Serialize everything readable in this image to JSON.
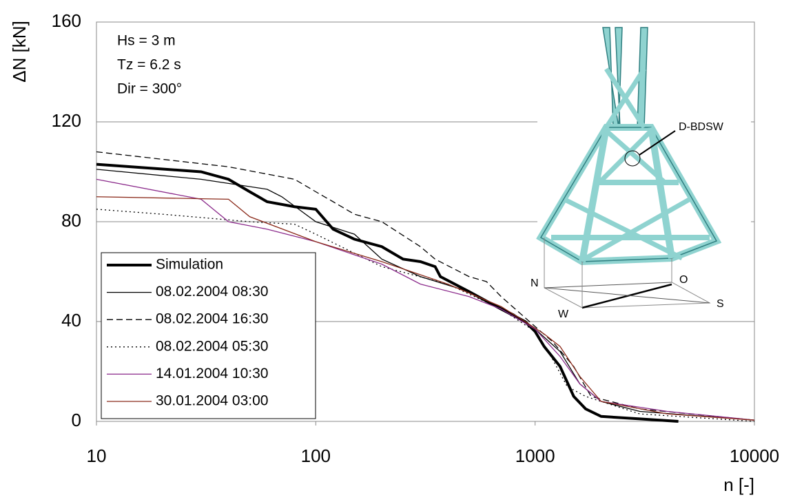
{
  "chart_data": {
    "type": "line",
    "x_label": "n [-]",
    "y_label": "ΔN [kN]",
    "xlim": [
      10,
      10000
    ],
    "xticks": [
      10,
      100,
      1000,
      10000
    ],
    "log_x": true,
    "ylim": [
      0,
      160
    ],
    "yticks": [
      0,
      40,
      80,
      120,
      160
    ],
    "grid": true,
    "legend": "lower left",
    "annotations": [
      "Hs = 3 m",
      "Tz = 6.2 s",
      "Dir = 300°"
    ],
    "inset_labels": [
      "D-BDSW",
      "N",
      "O",
      "W",
      "S"
    ],
    "series": [
      {
        "name": "Simulation",
        "color": "#000000",
        "width": 4,
        "dash": "none",
        "x": [
          10,
          30,
          40,
          50,
          60,
          80,
          100,
          120,
          150,
          200,
          250,
          300,
          350,
          370,
          500,
          700,
          900,
          1000,
          1100,
          1300,
          1500,
          1700,
          2000,
          3000,
          4500
        ],
        "values": [
          103,
          100,
          97,
          92,
          88,
          86,
          85,
          77,
          73,
          70,
          65,
          64,
          62,
          58,
          52,
          45,
          40,
          36,
          30,
          22,
          10,
          5,
          2,
          1,
          0
        ]
      },
      {
        "name": "08.02.2004 08:30",
        "color": "#000000",
        "width": 1.3,
        "dash": "none",
        "x": [
          10,
          30,
          60,
          70,
          100,
          150,
          200,
          300,
          500,
          800,
          1000,
          1300,
          1600,
          2000,
          3000,
          10000
        ],
        "values": [
          101,
          97,
          93,
          90,
          80,
          75,
          65,
          58,
          52,
          43,
          37,
          28,
          15,
          8,
          4,
          0.5
        ]
      },
      {
        "name": "08.02.2004 16:30",
        "color": "#000000",
        "width": 1.3,
        "dash": "9 5",
        "x": [
          10,
          40,
          80,
          100,
          120,
          150,
          200,
          300,
          350,
          500,
          600,
          700,
          1000,
          1200,
          1500,
          1800,
          3000,
          10000
        ],
        "values": [
          108,
          102,
          97,
          92,
          88,
          83,
          80,
          70,
          65,
          58,
          56,
          50,
          38,
          32,
          22,
          10,
          5,
          0.5
        ]
      },
      {
        "name": "08.02.2004 05:30",
        "color": "#000000",
        "width": 1.3,
        "dash": "2 4",
        "x": [
          10,
          20,
          50,
          80,
          100,
          200,
          400,
          700,
          1000,
          1200,
          1400,
          1700,
          3000,
          10000
        ],
        "values": [
          85,
          83,
          80,
          79,
          75,
          62,
          55,
          45,
          36,
          25,
          14,
          10,
          3,
          0
        ]
      },
      {
        "name": "14.01.2004 10:30",
        "color": "#8b2a8b",
        "width": 1.3,
        "dash": "none",
        "x": [
          10,
          30,
          40,
          60,
          100,
          200,
          300,
          500,
          700,
          1000,
          1300,
          1600,
          2000,
          4000,
          10000
        ],
        "values": [
          97,
          89,
          80,
          77,
          72,
          63,
          55,
          50,
          45,
          37,
          26,
          15,
          8,
          4,
          0.5
        ]
      },
      {
        "name": "30.01.2004 03:00",
        "color": "#8b2a1a",
        "width": 1.3,
        "dash": "none",
        "x": [
          10,
          40,
          50,
          100,
          200,
          400,
          700,
          900,
          1100,
          1300,
          1600,
          2000,
          4000,
          10000
        ],
        "values": [
          90,
          89,
          82,
          72,
          64,
          55,
          46,
          40,
          35,
          30,
          18,
          8,
          3,
          0.5
        ]
      }
    ]
  }
}
